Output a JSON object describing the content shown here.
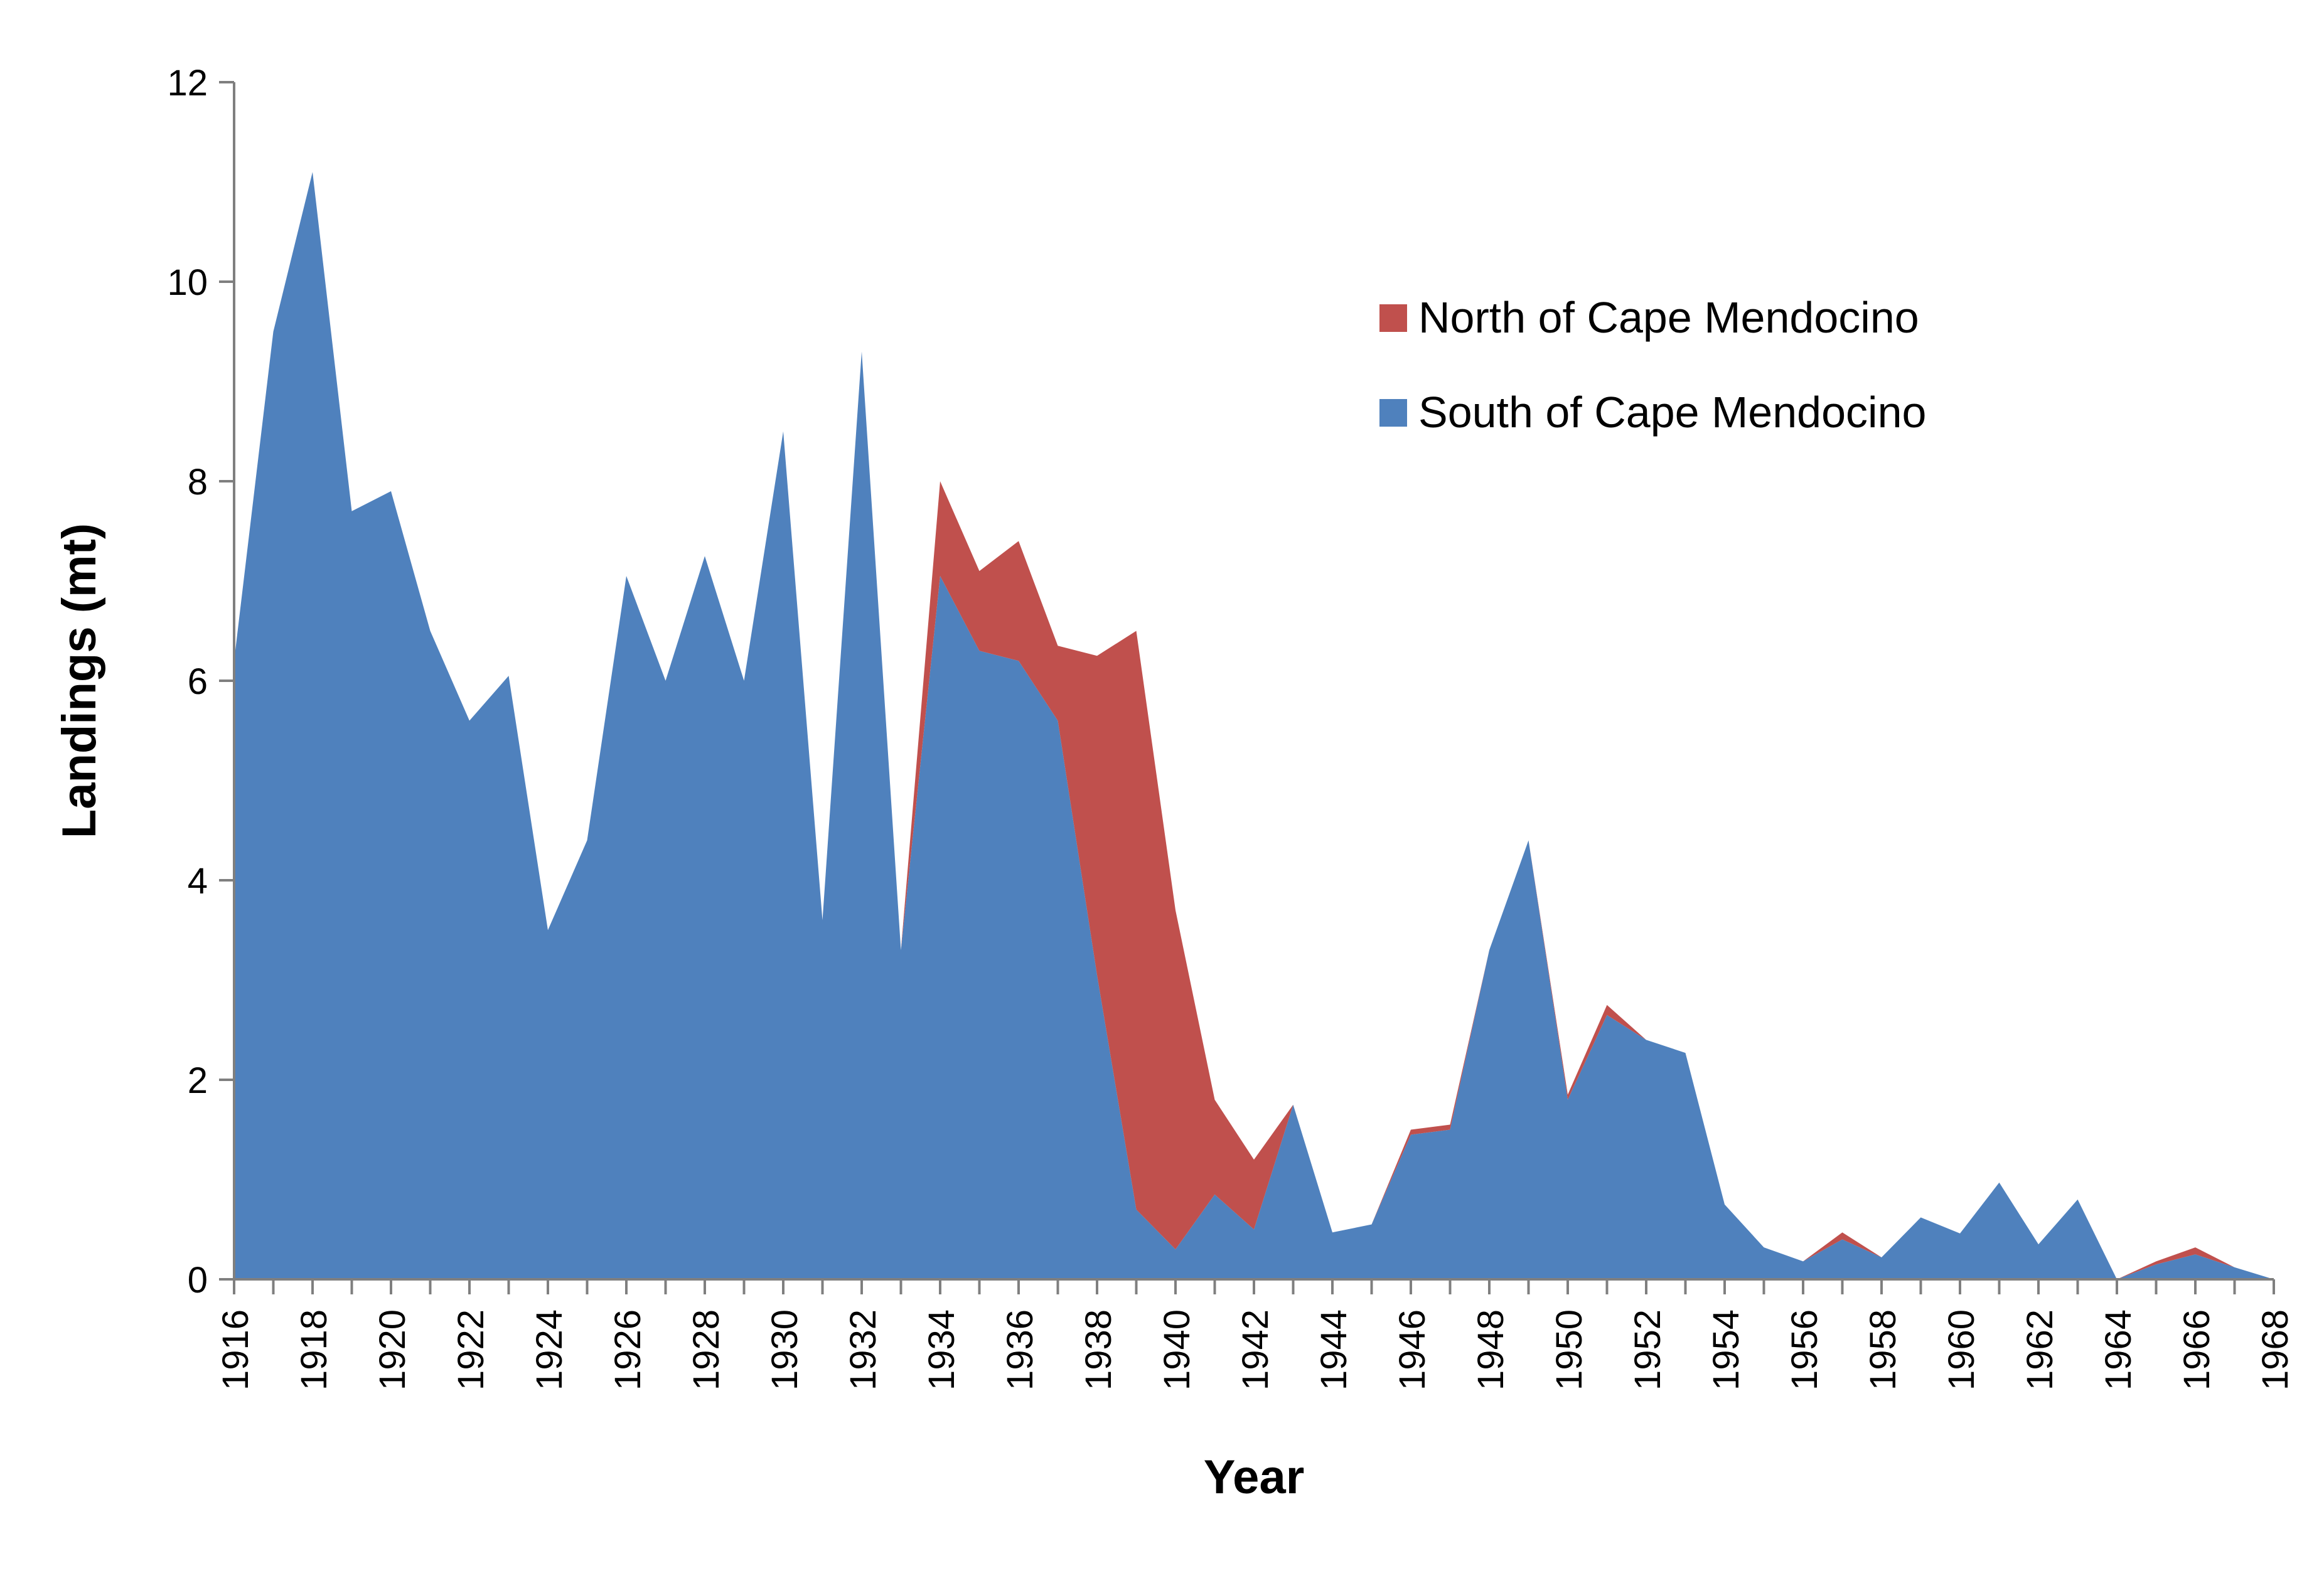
{
  "chart_data": {
    "type": "area",
    "stacked": true,
    "xlabel": "Year",
    "ylabel": "Landings (mt)",
    "ylim": [
      0,
      12
    ],
    "yticks": [
      "0",
      "2",
      "4",
      "6",
      "8",
      "10",
      "12"
    ],
    "xticks": [
      "1916",
      "1918",
      "1920",
      "1922",
      "1924",
      "1926",
      "1928",
      "1930",
      "1932",
      "1934",
      "1936",
      "1938",
      "1940",
      "1942",
      "1944",
      "1946",
      "1948",
      "1950",
      "1952",
      "1954",
      "1956",
      "1958",
      "1960",
      "1962",
      "1964",
      "1966",
      "1968"
    ],
    "x": [
      1916,
      1917,
      1918,
      1919,
      1920,
      1921,
      1922,
      1923,
      1924,
      1925,
      1926,
      1927,
      1928,
      1929,
      1930,
      1931,
      1932,
      1933,
      1934,
      1935,
      1936,
      1937,
      1938,
      1939,
      1940,
      1941,
      1942,
      1943,
      1944,
      1945,
      1946,
      1947,
      1948,
      1949,
      1950,
      1951,
      1952,
      1953,
      1954,
      1955,
      1956,
      1957,
      1958,
      1959,
      1960,
      1961,
      1962,
      1963,
      1964,
      1965,
      1966,
      1967,
      1968
    ],
    "grid": false,
    "legend_position": "top-right",
    "series": [
      {
        "name": "South of Cape Mendocino",
        "color": "#4f81bd",
        "values": [
          6.2,
          9.5,
          11.1,
          7.7,
          7.9,
          6.5,
          5.6,
          6.05,
          3.5,
          4.4,
          7.05,
          6.0,
          7.25,
          6.0,
          8.5,
          3.6,
          9.3,
          3.3,
          7.05,
          6.3,
          6.2,
          5.6,
          3.05,
          0.7,
          0.3,
          0.85,
          0.5,
          1.75,
          0.47,
          0.55,
          1.45,
          1.5,
          3.3,
          4.4,
          1.8,
          2.65,
          2.4,
          2.27,
          0.75,
          0.32,
          0.18,
          0.4,
          0.22,
          0.62,
          0.46,
          0.97,
          0.35,
          0.8,
          0.0,
          0.15,
          0.25,
          0.12,
          0.0
        ]
      },
      {
        "name": "North of Cape Mendocino",
        "color": "#c0504d",
        "values": [
          0,
          0,
          0,
          0,
          0,
          0,
          0,
          0,
          0,
          0,
          0,
          0,
          0,
          0,
          0,
          0,
          0,
          0,
          0.95,
          0.8,
          1.2,
          0.75,
          3.2,
          5.8,
          3.4,
          0.95,
          0.7,
          0.0,
          0,
          0,
          0.05,
          0.05,
          0,
          0,
          0.05,
          0.1,
          0,
          0,
          0,
          0,
          0,
          0.07,
          0,
          0,
          0,
          0,
          0,
          0,
          0,
          0.03,
          0.07,
          0,
          0
        ]
      }
    ]
  }
}
